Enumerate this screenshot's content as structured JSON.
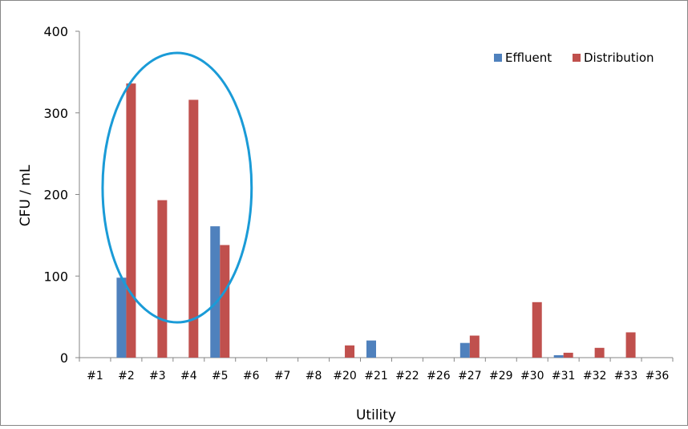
{
  "chart_data": {
    "type": "bar",
    "xlabel": "Utility",
    "ylabel": "CFU / mL",
    "ylim": [
      0,
      400
    ],
    "yticks": [
      0,
      100,
      200,
      300,
      400
    ],
    "categories": [
      "#1",
      "#2",
      "#3",
      "#4",
      "#5",
      "#6",
      "#7",
      "#8",
      "#20",
      "#21",
      "#22",
      "#26",
      "#27",
      "#29",
      "#30",
      "#31",
      "#32",
      "#33",
      "#36"
    ],
    "series": [
      {
        "name": "Effluent",
        "color": "#4f81bd",
        "values": [
          0,
          98,
          0,
          0,
          161,
          0,
          0,
          0,
          0,
          21,
          0,
          0,
          18,
          0,
          0,
          3,
          0,
          0,
          0
        ]
      },
      {
        "name": "Distribution",
        "color": "#c0504d",
        "values": [
          0,
          336,
          193,
          316,
          138,
          0,
          0,
          0,
          15,
          0,
          0,
          0,
          27,
          0,
          68,
          6,
          12,
          31,
          0
        ]
      }
    ],
    "grid": false,
    "legend_position": "top-right",
    "annotation": {
      "shape": "ellipse",
      "color": "#1a9bd7",
      "encloses_categories": [
        "#2",
        "#3",
        "#4",
        "#5"
      ]
    }
  }
}
